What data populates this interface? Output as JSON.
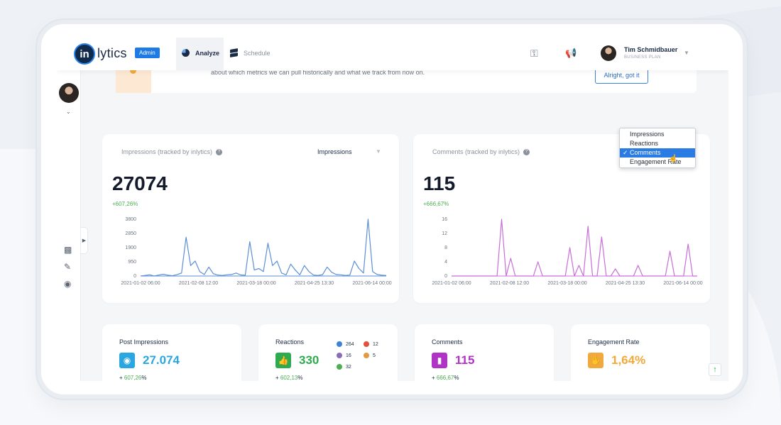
{
  "header": {
    "logo_mark": "in",
    "logo_text": "lytics",
    "admin_badge": "Admin",
    "nav": [
      {
        "label": "Analyze",
        "icon": "pie-chart-icon"
      },
      {
        "label": "Schedule",
        "icon": "layers-icon"
      }
    ],
    "user": {
      "name": "Tim Schmidbauer",
      "plan": "BUSINESS PLAN"
    }
  },
  "banner": {
    "text": "about which metrics we can pull historically and what we track from now on.",
    "button": "Alright, got it"
  },
  "impressions_card": {
    "title": "Impressions (tracked by inlytics)",
    "selector": "Impressions",
    "value": "27074",
    "delta": "+607,26%",
    "chart_data": {
      "type": "line",
      "y_ticks": [
        "3800",
        "2850",
        "1900",
        "950",
        "0"
      ],
      "x_ticks": [
        "2021-01-02 06:00",
        "2021-02-08 12:00",
        "2021-03-18 00:00",
        "2021-04-25 13:30",
        "2021-06-14 00:00"
      ],
      "ylim": [
        0,
        3800
      ],
      "color": "#5b8fd6",
      "values": [
        0,
        40,
        80,
        0,
        60,
        120,
        50,
        20,
        90,
        200,
        2600,
        700,
        1000,
        300,
        100,
        600,
        150,
        60,
        40,
        80,
        100,
        200,
        70,
        50,
        2300,
        400,
        500,
        300,
        2200,
        700,
        1000,
        200,
        80,
        800,
        400,
        80,
        700,
        300,
        60,
        40,
        90,
        600,
        250,
        100,
        80,
        40,
        60,
        1000,
        500,
        200,
        3800,
        300,
        100,
        50,
        40
      ]
    }
  },
  "comments_card": {
    "title": "Comments (tracked by inlytics)",
    "value": "115",
    "delta": "+666,67%",
    "chart_data": {
      "type": "line",
      "y_ticks": [
        "16",
        "12",
        "8",
        "4",
        "0"
      ],
      "x_ticks": [
        "2021-01-02 06:00",
        "2021-02-08 12:00",
        "2021-03-18 00:00",
        "2021-04-25 13:30",
        "2021-06-14 00:00"
      ],
      "ylim": [
        0,
        16
      ],
      "color": "#c86ed8",
      "values": [
        0,
        0,
        0,
        0,
        0,
        0,
        0,
        0,
        0,
        0,
        0,
        16,
        0,
        5,
        0,
        0,
        0,
        0,
        0,
        4,
        0,
        0,
        0,
        0,
        0,
        0,
        8,
        0,
        3,
        0,
        14,
        0,
        0,
        11,
        0,
        0,
        2,
        0,
        0,
        0,
        0,
        3,
        0,
        0,
        0,
        0,
        0,
        0,
        7,
        0,
        0,
        0,
        9,
        0,
        0
      ]
    }
  },
  "dropdown": {
    "options": [
      "Impressions",
      "Reactions",
      "Comments",
      "Engagement Rate"
    ],
    "selected": "Comments"
  },
  "kpis": [
    {
      "title": "Post Impressions",
      "value": "27.074",
      "delta_prefix": "+ ",
      "delta": "607,26",
      "delta_suffix": "%",
      "color": "#2aa7e0",
      "icon": "eye-icon"
    },
    {
      "title": "Reactions",
      "value": "330",
      "delta_prefix": "+ ",
      "delta": "602,13",
      "delta_suffix": "%",
      "color": "#2eaa4f",
      "icon": "thumbs-up-icon"
    },
    {
      "title": "Comments",
      "value": "115",
      "delta_prefix": "+ ",
      "delta": "666,67",
      "delta_suffix": "%",
      "color": "#b133c6",
      "icon": "comment-icon"
    },
    {
      "title": "Engagement Rate",
      "value": "1,64%",
      "color": "#f2a93b",
      "icon": "clap-icon"
    }
  ],
  "reaction_breakdown": [
    {
      "count": "264",
      "color": "#3b82d9",
      "icon": "like-reaction-icon"
    },
    {
      "count": "12",
      "color": "#e0523a",
      "icon": "love-reaction-icon"
    },
    {
      "count": "16",
      "color": "#8a6bb8",
      "icon": "curious-reaction-icon"
    },
    {
      "count": "5",
      "color": "#e39a43",
      "icon": "insightful-reaction-icon"
    },
    {
      "count": "32",
      "color": "#4caf50",
      "icon": "celebrate-reaction-icon"
    }
  ]
}
